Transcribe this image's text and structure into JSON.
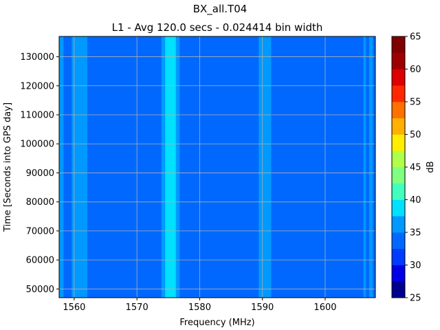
{
  "chart_data": {
    "type": "heatmap",
    "title": "BX_all.T04",
    "subtitle": "L1 - Avg 120.0 secs - 0.024414 bin width",
    "xlabel": "Frequency (MHz)",
    "ylabel": "Time [Seconds into GPS day]",
    "colorbar_label": "dB",
    "xlim": [
      1557.6,
      1608.0
    ],
    "ylim": [
      47000,
      137000
    ],
    "x_ticks": [
      1560,
      1570,
      1580,
      1590,
      1600
    ],
    "y_ticks": [
      50000,
      60000,
      70000,
      80000,
      90000,
      100000,
      110000,
      120000,
      130000
    ],
    "grid": true,
    "colorbar": {
      "levels": [
        25,
        27.5,
        30,
        32.5,
        35,
        37.5,
        40,
        42.5,
        45,
        47.5,
        50,
        52.5,
        55,
        57.5,
        60,
        62.5,
        65
      ],
      "tick_values": [
        25,
        30,
        35,
        40,
        45,
        50,
        55,
        60,
        65
      ],
      "colors": [
        "#00008f",
        "#0000e6",
        "#003cff",
        "#0068ff",
        "#0099ff",
        "#00e0ff",
        "#40ffbf",
        "#80ff80",
        "#b0ff4a",
        "#ffee00",
        "#ffb000",
        "#ff7000",
        "#ff2800",
        "#dc0000",
        "#9e0000",
        "#800000"
      ]
    },
    "base_level_db": 34,
    "bands": [
      {
        "x_start": 1557.6,
        "x_end": 1558.3,
        "level_db": 37
      },
      {
        "x_start": 1559.6,
        "x_end": 1562.1,
        "level_db": 37
      },
      {
        "x_start": 1573.9,
        "x_end": 1576.8,
        "level_db": 37
      },
      {
        "x_start": 1574.5,
        "x_end": 1576.2,
        "level_db": 39
      },
      {
        "x_start": 1589.4,
        "x_end": 1591.4,
        "level_db": 37
      },
      {
        "x_start": 1606.1,
        "x_end": 1606.5,
        "level_db": 37
      },
      {
        "x_start": 1607.0,
        "x_end": 1607.6,
        "level_db": 37
      }
    ]
  }
}
